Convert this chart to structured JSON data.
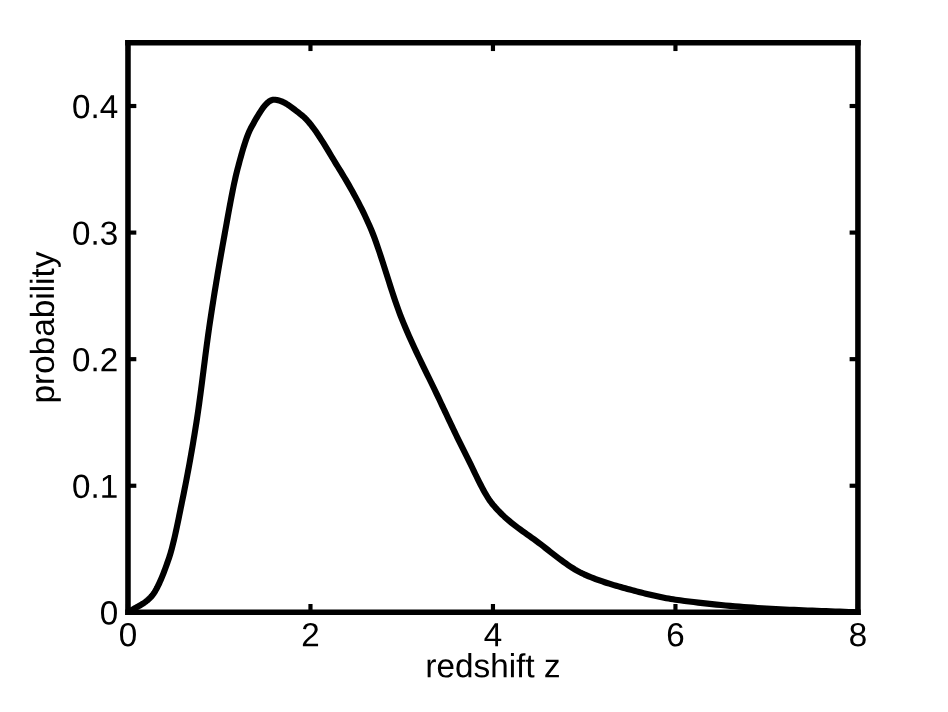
{
  "chart_data": {
    "type": "line",
    "xlabel": "redshift z",
    "ylabel": "probability",
    "x": [
      0,
      0.25,
      0.45,
      0.6,
      0.75,
      0.9,
      1.05,
      1.2,
      1.35,
      1.6,
      1.9,
      2.3,
      2.65,
      3.0,
      3.4,
      3.7,
      4.0,
      4.5,
      5.0,
      5.5,
      6.0,
      7.0,
      8.0
    ],
    "series": [
      {
        "color": "#000000",
        "values": [
          0,
          0.012,
          0.043,
          0.09,
          0.15,
          0.23,
          0.295,
          0.35,
          0.383,
          0.405,
          0.393,
          0.352,
          0.305,
          0.232,
          0.17,
          0.125,
          0.085,
          0.055,
          0.03,
          0.018,
          0.01,
          0.003,
          0
        ]
      }
    ],
    "xlim": [
      0,
      8
    ],
    "ylim": [
      0,
      0.45
    ],
    "xticks": [
      0,
      2,
      4,
      6,
      8
    ],
    "yticks": [
      0,
      0.1,
      0.2,
      0.3,
      0.4
    ],
    "grid": false,
    "legend": false,
    "marker": "none",
    "line_style": "solid"
  }
}
